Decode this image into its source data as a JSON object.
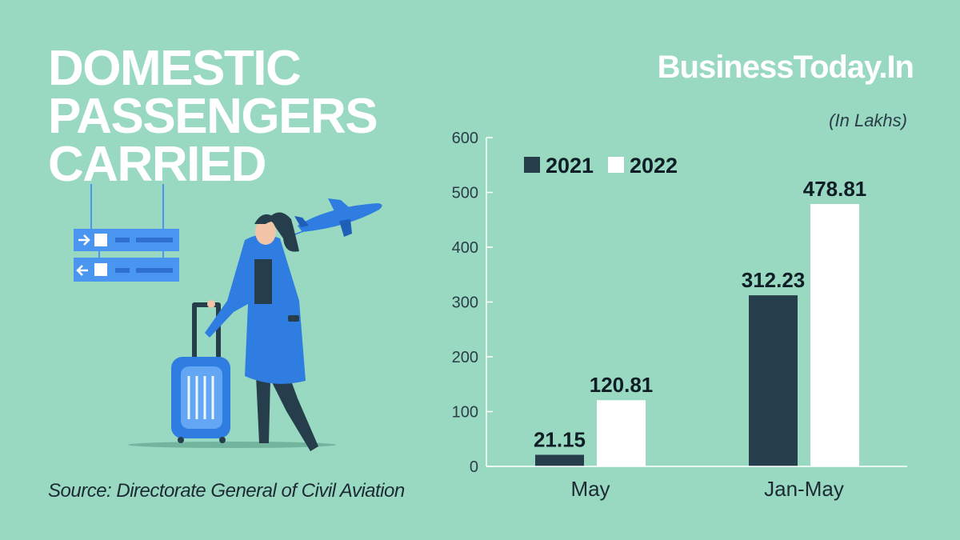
{
  "title_lines": [
    "DOMESTIC",
    "PASSENGERS",
    "CARRIED"
  ],
  "brand": "BusinessToday.In",
  "unit_note": "(In Lakhs)",
  "source": "Source: Directorate General of Civil Aviation",
  "colors": {
    "background": "#99d9c1",
    "series_2021": "#263e4b",
    "series_2022": "#ffffff",
    "illustration_blue": "#2f7de0",
    "sign_blue": "#4a95f0"
  },
  "icons": [
    "departure-sign-icon",
    "airplane-icon",
    "traveller-with-suitcase-icon"
  ],
  "chart_data": {
    "type": "bar",
    "categories": [
      "May",
      "Jan-May"
    ],
    "series": [
      {
        "name": "2021",
        "values": [
          21.15,
          312.23
        ],
        "labels": [
          "21.15",
          "312.23"
        ]
      },
      {
        "name": "2022",
        "values": [
          120.81,
          478.81
        ],
        "labels": [
          "120.81",
          "478.81"
        ]
      }
    ],
    "ylim": [
      0,
      600
    ],
    "yticks": [
      0,
      100,
      200,
      300,
      400,
      500,
      600
    ],
    "grid": false,
    "legend_position": "top-left",
    "ylabel": "(In Lakhs)",
    "xlabel": ""
  }
}
